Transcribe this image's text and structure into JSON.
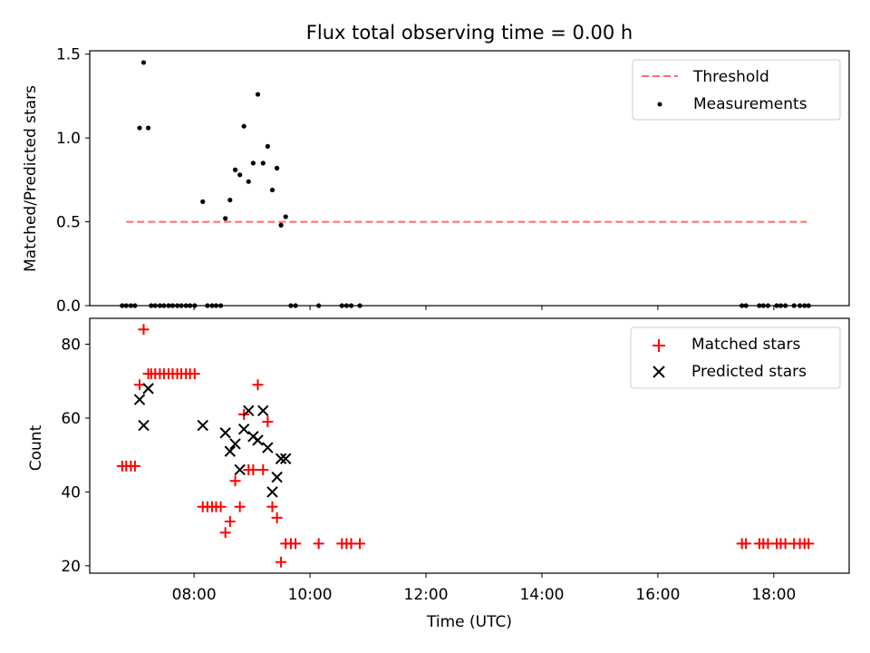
{
  "title": "Flux total observing time = 0.00 h",
  "colors": {
    "threshold": "#ff6b6b",
    "measurement": "#000000",
    "matched": "#ff0000",
    "predicted": "#000000"
  },
  "chart_data": [
    {
      "type": "scatter",
      "ylabel": "Matched/Predicted stars",
      "xlim": [
        6.2,
        19.3
      ],
      "ylim": [
        0,
        1.52
      ],
      "yticks": [
        0.0,
        0.5,
        1.0,
        1.5
      ],
      "ytick_labels": [
        "0.0",
        "0.5",
        "1.0",
        "1.5"
      ],
      "xticks": [
        8,
        10,
        12,
        14,
        16,
        18
      ],
      "legend": "top-right",
      "threshold": {
        "name": "Threshold",
        "y": 0.5,
        "x_range": [
          6.83,
          18.57
        ]
      },
      "series": [
        {
          "name": "Measurements",
          "x": [
            6.76,
            6.83,
            6.91,
            6.98,
            7.06,
            7.13,
            7.21,
            7.26,
            7.33,
            7.41,
            7.48,
            7.56,
            7.63,
            7.71,
            7.78,
            7.86,
            7.93,
            8.01,
            8.15,
            8.23,
            8.31,
            8.38,
            8.46,
            8.54,
            8.62,
            8.71,
            8.79,
            8.86,
            8.94,
            9.02,
            9.1,
            9.19,
            9.27,
            9.35,
            9.43,
            9.5,
            9.58,
            9.67,
            9.75,
            10.15,
            10.55,
            10.63,
            10.71,
            10.86,
            17.45,
            17.52,
            17.75,
            17.82,
            17.9,
            18.05,
            18.12,
            18.2,
            18.35,
            18.45,
            18.53,
            18.6
          ],
          "y": [
            0,
            0,
            0,
            0,
            1.06,
            1.45,
            1.06,
            0,
            0,
            0,
            0,
            0,
            0,
            0,
            0,
            0,
            0,
            0,
            0.62,
            0,
            0,
            0,
            0,
            0.52,
            0.63,
            0.81,
            0.78,
            1.07,
            0.74,
            0.85,
            1.26,
            0.85,
            0.95,
            0.69,
            0.82,
            0.48,
            0.53,
            0,
            0,
            0,
            0,
            0,
            0,
            0,
            0,
            0,
            0,
            0,
            0,
            0,
            0,
            0,
            0,
            0,
            0,
            0
          ]
        }
      ]
    },
    {
      "type": "scatter",
      "xlabel": "Time (UTC)",
      "ylabel": "Count",
      "xlim": [
        6.2,
        19.3
      ],
      "ylim": [
        18,
        87
      ],
      "yticks": [
        20,
        40,
        60,
        80
      ],
      "ytick_labels": [
        "20",
        "40",
        "60",
        "80"
      ],
      "xticks": [
        8,
        10,
        12,
        14,
        16,
        18
      ],
      "xtick_labels": [
        "08:00",
        "10:00",
        "12:00",
        "14:00",
        "16:00",
        "18:00"
      ],
      "legend": "top-right",
      "series": [
        {
          "name": "Matched stars",
          "marker": "plus",
          "x": [
            6.76,
            6.83,
            6.91,
            6.98,
            7.06,
            7.13,
            7.21,
            7.26,
            7.33,
            7.41,
            7.48,
            7.56,
            7.63,
            7.71,
            7.78,
            7.86,
            7.93,
            8.01,
            8.15,
            8.23,
            8.31,
            8.38,
            8.46,
            8.54,
            8.62,
            8.71,
            8.79,
            8.86,
            8.94,
            9.02,
            9.1,
            9.19,
            9.27,
            9.35,
            9.43,
            9.5,
            9.58,
            9.67,
            9.75,
            10.15,
            10.55,
            10.63,
            10.71,
            10.86,
            17.45,
            17.52,
            17.75,
            17.82,
            17.9,
            18.05,
            18.12,
            18.2,
            18.35,
            18.45,
            18.53,
            18.6
          ],
          "y": [
            47,
            47,
            47,
            47,
            69,
            84,
            72,
            72,
            72,
            72,
            72,
            72,
            72,
            72,
            72,
            72,
            72,
            72,
            36,
            36,
            36,
            36,
            36,
            29,
            32,
            43,
            36,
            61,
            46,
            46,
            69,
            46,
            59,
            36,
            33,
            21,
            26,
            26,
            26,
            26,
            26,
            26,
            26,
            26,
            26,
            26,
            26,
            26,
            26,
            26,
            26,
            26,
            26,
            26,
            26,
            26
          ]
        },
        {
          "name": "Predicted stars",
          "marker": "x",
          "x": [
            7.06,
            7.13,
            7.21,
            8.15,
            8.54,
            8.62,
            8.71,
            8.79,
            8.86,
            8.94,
            9.02,
            9.1,
            9.19,
            9.27,
            9.35,
            9.43,
            9.5,
            9.58
          ],
          "y": [
            65,
            58,
            68,
            58,
            56,
            51,
            53,
            46,
            57,
            62,
            55,
            54,
            62,
            52,
            40,
            44,
            49,
            49
          ]
        }
      ]
    }
  ]
}
